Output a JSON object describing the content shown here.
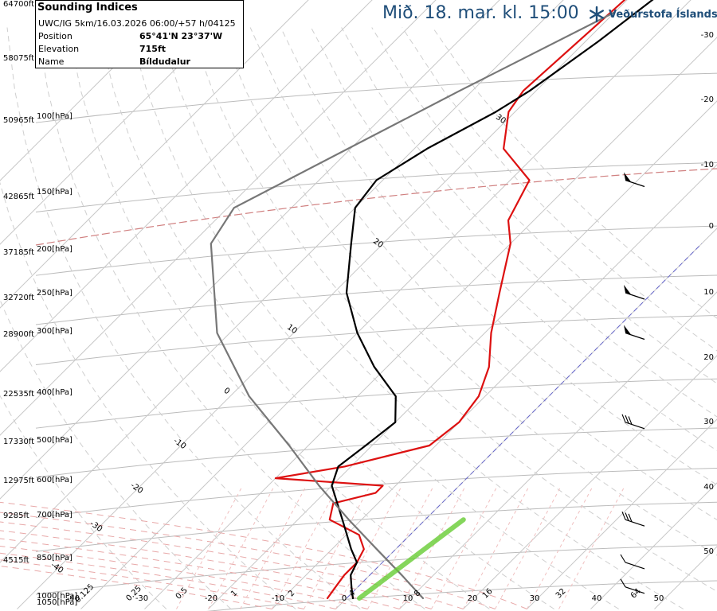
{
  "header": {
    "date_title": "Mið. 18. mar. kl. 15:00",
    "logo_text": "Veðurstofa Íslands",
    "logo_icon": "snowflake-icon",
    "brand_color": "#1f4e79"
  },
  "info": {
    "title": "Sounding Indices",
    "subtitle": "UWC/IG 5km/16.03.2026 06:00/+57 h/04125",
    "rows": [
      {
        "label": "Position",
        "value": "65°41'N 23°37'W"
      },
      {
        "label": "Elevation",
        "value": "715ft"
      },
      {
        "label": "Name",
        "value": "Bíldudalur"
      }
    ]
  },
  "chart_data": {
    "type": "line",
    "axes": {
      "height_ft_labels": [
        "64700ft",
        "58075ft",
        "50965ft",
        "42865ft",
        "37185ft",
        "32720ft",
        "28900ft",
        "22535ft",
        "17330ft",
        "12975ft",
        "9285ft",
        "4515ft"
      ],
      "pressure_labels": [
        "100[hPa]",
        "150[hPa]",
        "200[hPa]",
        "250[hPa]",
        "300[hPa]",
        "400[hPa]",
        "500[hPa]",
        "600[hPa]",
        "700[hPa]",
        "850[hPa]",
        "1000[hPa]",
        "1050[hPa]"
      ],
      "bottom_temperature_labels": [
        "-40",
        "-30",
        "-20",
        "-10",
        "0",
        "10",
        "20",
        "30",
        "40",
        "50"
      ],
      "right_temperature_labels": [
        "-30",
        "-20",
        "-10",
        "0",
        "10",
        "20",
        "30",
        "40",
        "50"
      ],
      "mixing_ratio_labels": [
        "0.125",
        "0.25",
        "0.5",
        "1",
        "2",
        "4",
        "8",
        "16",
        "32",
        "64"
      ],
      "isotherm_labels": [
        "30",
        "20",
        "10",
        "0",
        "-10",
        "-20",
        "-30",
        "-40"
      ]
    },
    "series": [
      {
        "color": "#dd1111",
        "profile": [
          [
            1000,
            -3
          ],
          [
            950,
            -3.5
          ],
          [
            900,
            -4
          ],
          [
            850,
            -4
          ],
          [
            800,
            -5
          ],
          [
            750,
            -8
          ],
          [
            700,
            -15
          ],
          [
            650,
            -17
          ],
          [
            620,
            -12
          ],
          [
            600,
            -12
          ],
          [
            580,
            -30
          ],
          [
            550,
            -21
          ],
          [
            500,
            -11
          ],
          [
            450,
            -10
          ],
          [
            400,
            -11
          ],
          [
            350,
            -14
          ],
          [
            300,
            -19
          ],
          [
            250,
            -24
          ],
          [
            200,
            -30
          ],
          [
            180,
            -34
          ],
          [
            150,
            -37
          ],
          [
            130,
            -46
          ],
          [
            110,
            -51
          ],
          [
            100,
            -52
          ],
          [
            60,
            -50
          ]
        ]
      },
      {
        "color": "#000000",
        "profile": [
          [
            1000,
            1
          ],
          [
            950,
            -1
          ],
          [
            900,
            -3
          ],
          [
            850,
            -4
          ],
          [
            800,
            -7
          ],
          [
            700,
            -13
          ],
          [
            600,
            -20
          ],
          [
            550,
            -22
          ],
          [
            500,
            -21
          ],
          [
            450,
            -20
          ],
          [
            400,
            -24
          ],
          [
            350,
            -32
          ],
          [
            300,
            -40
          ],
          [
            250,
            -48
          ],
          [
            200,
            -55
          ],
          [
            170,
            -60
          ],
          [
            150,
            -61
          ],
          [
            130,
            -58
          ],
          [
            110,
            -53
          ],
          [
            100,
            -51
          ],
          [
            80,
            -48
          ],
          [
            60,
            -45
          ]
        ]
      },
      {
        "color": "#777777",
        "profile": [
          [
            1000,
            12
          ],
          [
            900,
            5
          ],
          [
            800,
            -3
          ],
          [
            700,
            -12
          ],
          [
            600,
            -22
          ],
          [
            500,
            -33
          ],
          [
            400,
            -47
          ],
          [
            300,
            -62
          ],
          [
            200,
            -77
          ],
          [
            170,
            -79
          ],
          [
            100,
            -62
          ],
          [
            70,
            -50
          ]
        ]
      },
      {
        "color": "#66cc33",
        "profile": [
          [
            1000,
            2
          ],
          [
            700,
            6
          ]
        ]
      }
    ],
    "wind_barbs": [
      {
        "pressure": 150,
        "symbol": "pennant"
      },
      {
        "pressure": 250,
        "symbol": "pennant"
      },
      {
        "pressure": 300,
        "symbol": "pennant"
      },
      {
        "pressure": 450,
        "symbol": "barbs"
      },
      {
        "pressure": 700,
        "symbol": "barbs"
      },
      {
        "pressure": 850,
        "symbol": "barb"
      },
      {
        "pressure": 950,
        "symbol": "barb"
      }
    ]
  }
}
